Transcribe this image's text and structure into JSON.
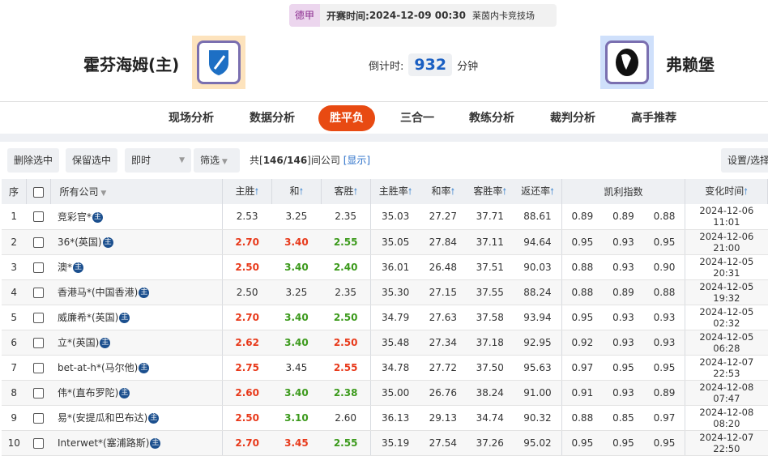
{
  "match": {
    "league": "德甲",
    "kickoff_label": "开赛时间:",
    "kickoff": "2024-12-09 00:30",
    "venue": "莱茵内卡竞技场",
    "home": "霍芬海姆(主)",
    "away": "弗赖堡",
    "countdown_label": "倒计时:",
    "countdown": "932",
    "countdown_unit": "分钟"
  },
  "nav": [
    {
      "label": "现场分析"
    },
    {
      "label": "数据分析"
    },
    {
      "label": "胜平负",
      "active": true
    },
    {
      "label": "三合一"
    },
    {
      "label": "教练分析"
    },
    {
      "label": "裁判分析"
    },
    {
      "label": "高手推荐"
    }
  ],
  "toolbar": {
    "delete": "删除选中",
    "keep": "保留选中",
    "mode": "即时",
    "filter": "筛选",
    "count_prefix": "共[",
    "count": "146/146",
    "count_suffix": "]间公司",
    "show": "[显示]",
    "settings": "设置/选择"
  },
  "colors": {
    "accent": "#e84a12",
    "up": "#e8391a",
    "down": "#3c9a1c"
  },
  "table": {
    "headers": {
      "seq": "序",
      "company": "所有公司",
      "home": "主胜",
      "draw": "和",
      "away": "客胜",
      "home_rate": "主胜率",
      "draw_rate": "和率",
      "away_rate": "客胜率",
      "return": "返还率",
      "kelly": "凯利指数",
      "time": "变化时间"
    },
    "rows": [
      {
        "n": "1",
        "c": "竞彩官*",
        "h": "2.53",
        "d": "3.25",
        "a": "2.35",
        "hs": "",
        "ds": "",
        "as": "",
        "hr": "35.03",
        "dr": "27.27",
        "ar": "37.71",
        "r": "88.61",
        "k1": "0.89",
        "k2": "0.89",
        "k3": "0.88",
        "t": "2024-12-06 11:01"
      },
      {
        "n": "2",
        "c": "36*(英国)",
        "h": "2.70",
        "d": "3.40",
        "a": "2.55",
        "hs": "up",
        "ds": "up",
        "as": "down",
        "hr": "35.05",
        "dr": "27.84",
        "ar": "37.11",
        "r": "94.64",
        "k1": "0.95",
        "k2": "0.93",
        "k3": "0.95",
        "t": "2024-12-06 21:00"
      },
      {
        "n": "3",
        "c": "澳*",
        "h": "2.50",
        "d": "3.40",
        "a": "2.40",
        "hs": "up",
        "ds": "down",
        "as": "down",
        "hr": "36.01",
        "dr": "26.48",
        "ar": "37.51",
        "r": "90.03",
        "k1": "0.88",
        "k2": "0.93",
        "k3": "0.90",
        "t": "2024-12-05 20:31"
      },
      {
        "n": "4",
        "c": "香港马*(中国香港)",
        "h": "2.50",
        "d": "3.25",
        "a": "2.35",
        "hs": "",
        "ds": "",
        "as": "",
        "hr": "35.30",
        "dr": "27.15",
        "ar": "37.55",
        "r": "88.24",
        "k1": "0.88",
        "k2": "0.89",
        "k3": "0.88",
        "t": "2024-12-05 19:32"
      },
      {
        "n": "5",
        "c": "威廉希*(英国)",
        "h": "2.70",
        "d": "3.40",
        "a": "2.50",
        "hs": "up",
        "ds": "down",
        "as": "down",
        "hr": "34.79",
        "dr": "27.63",
        "ar": "37.58",
        "r": "93.94",
        "k1": "0.95",
        "k2": "0.93",
        "k3": "0.93",
        "t": "2024-12-05 02:32"
      },
      {
        "n": "6",
        "c": "立*(英国)",
        "h": "2.62",
        "d": "3.40",
        "a": "2.50",
        "hs": "up",
        "ds": "down",
        "as": "up",
        "hr": "35.48",
        "dr": "27.34",
        "ar": "37.18",
        "r": "92.95",
        "k1": "0.92",
        "k2": "0.93",
        "k3": "0.93",
        "t": "2024-12-05 06:28"
      },
      {
        "n": "7",
        "c": "bet-at-h*(马尔他)",
        "h": "2.75",
        "d": "3.45",
        "a": "2.55",
        "hs": "up",
        "ds": "",
        "as": "up",
        "hr": "34.78",
        "dr": "27.72",
        "ar": "37.50",
        "r": "95.63",
        "k1": "0.97",
        "k2": "0.95",
        "k3": "0.95",
        "t": "2024-12-07 22:53"
      },
      {
        "n": "8",
        "c": "伟*(直布罗陀)",
        "h": "2.60",
        "d": "3.40",
        "a": "2.38",
        "hs": "up",
        "ds": "down",
        "as": "down",
        "hr": "35.00",
        "dr": "26.76",
        "ar": "38.24",
        "r": "91.00",
        "k1": "0.91",
        "k2": "0.93",
        "k3": "0.89",
        "t": "2024-12-08 07:47"
      },
      {
        "n": "9",
        "c": "易*(安提瓜和巴布达)",
        "h": "2.50",
        "d": "3.10",
        "a": "2.60",
        "hs": "up",
        "ds": "down",
        "as": "",
        "hr": "36.13",
        "dr": "29.13",
        "ar": "34.74",
        "r": "90.32",
        "k1": "0.88",
        "k2": "0.85",
        "k3": "0.97",
        "t": "2024-12-08 08:20"
      },
      {
        "n": "10",
        "c": "Interwet*(塞浦路斯)",
        "h": "2.70",
        "d": "3.45",
        "a": "2.55",
        "hs": "up",
        "ds": "up",
        "as": "down",
        "hr": "35.19",
        "dr": "27.54",
        "ar": "37.26",
        "r": "95.02",
        "k1": "0.95",
        "k2": "0.95",
        "k3": "0.95",
        "t": "2024-12-07 22:50"
      }
    ]
  },
  "badge": "主"
}
